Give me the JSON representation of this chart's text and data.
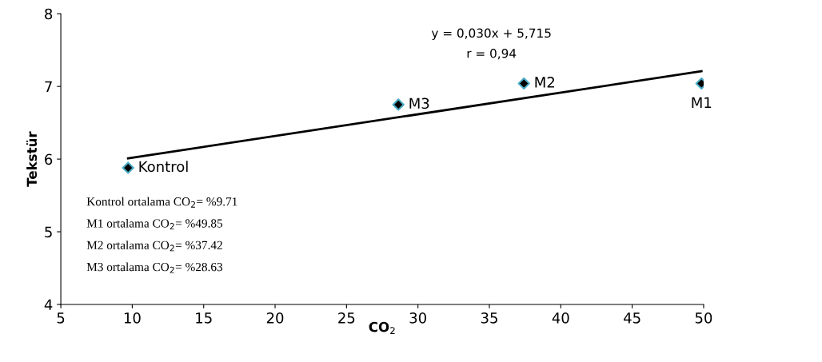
{
  "chart_data": {
    "type": "scatter",
    "xlabel": "CO$_{2}$",
    "ylabel": "Tekstür",
    "xlim": [
      5,
      50
    ],
    "xticks": [
      5,
      10,
      15,
      20,
      25,
      30,
      35,
      40,
      45,
      50
    ],
    "ylim": [
      4,
      8
    ],
    "yticks": [
      4,
      5,
      6,
      7,
      8
    ],
    "grid": false,
    "legend": false,
    "marker": "diamond",
    "series": [
      {
        "name": "Kontrol",
        "color": "#000000",
        "x": [
          9.71
        ],
        "values": [
          5.88
        ]
      },
      {
        "name": "M1",
        "color": "#000000",
        "x": [
          49.85
        ],
        "values": [
          7.04
        ]
      },
      {
        "name": "M2",
        "color": "#000000",
        "x": [
          37.42
        ],
        "values": [
          7.04
        ]
      },
      {
        "name": "M3",
        "color": "#000000",
        "x": [
          28.63
        ],
        "values": [
          6.75
        ]
      },
      {
        "type": "line",
        "color": "#000000",
        "x": [
          9.71,
          49.85
        ],
        "values": [
          6.01,
          7.21
        ],
        "marker": "none"
      }
    ],
    "annotations": [
      "y = 0,030x + 5,715",
      "r = 0,94",
      "Kontrol ortalama CO$_{2}$= %9.71",
      "M1 ortalama CO$_{2}$= %49.85",
      "M2 ortalama CO$_{2}$= %37.42",
      "M3 ortalama CO$_{2}$= %28.63"
    ]
  }
}
